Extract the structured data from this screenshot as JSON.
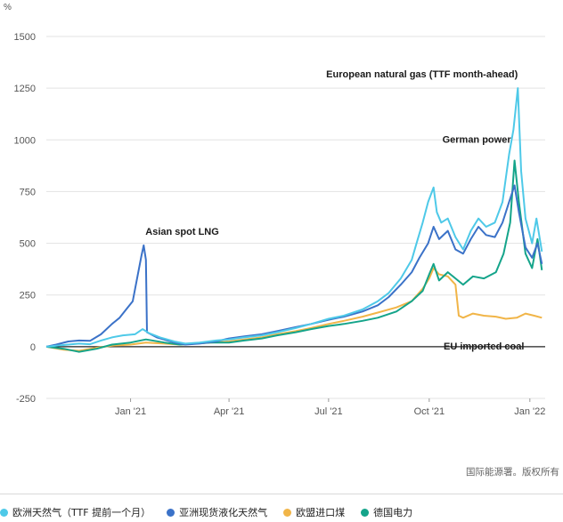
{
  "chart_data": {
    "type": "line",
    "unit": "%",
    "ylim": [
      -250,
      1500
    ],
    "yticks": [
      -250,
      0,
      250,
      500,
      750,
      1000,
      1250,
      1500
    ],
    "xlim": [
      "2020-10-16",
      "2022-01-15"
    ],
    "xticks": [
      {
        "date": "2021-01-01",
        "label": "Jan '21"
      },
      {
        "date": "2021-04-01",
        "label": "Apr '21"
      },
      {
        "date": "2021-07-01",
        "label": "Jul '21"
      },
      {
        "date": "2021-10-01",
        "label": "Oct '21"
      },
      {
        "date": "2022-01-01",
        "label": "Jan '22"
      }
    ],
    "grid": true,
    "legend_position": "bottom",
    "annotations": [
      {
        "series": "ttf",
        "text": "European natural gas (TTF month-ahead)"
      },
      {
        "series": "power",
        "text": "German power"
      },
      {
        "series": "lng",
        "text": "Asian spot LNG"
      },
      {
        "series": "coal",
        "text": "EU imported coal"
      }
    ],
    "series": [
      {
        "id": "ttf",
        "name": "欧洲天然气（TTF 提前一个月）",
        "color": "#4ec9e8",
        "points": [
          [
            "2020-10-16",
            0
          ],
          [
            "2020-10-25",
            5
          ],
          [
            "2020-11-05",
            10
          ],
          [
            "2020-11-15",
            15
          ],
          [
            "2020-11-25",
            12
          ],
          [
            "2020-12-05",
            30
          ],
          [
            "2020-12-15",
            45
          ],
          [
            "2020-12-25",
            55
          ],
          [
            "2021-01-05",
            60
          ],
          [
            "2021-01-12",
            85
          ],
          [
            "2021-01-18",
            65
          ],
          [
            "2021-01-28",
            45
          ],
          [
            "2021-02-10",
            25
          ],
          [
            "2021-02-20",
            15
          ],
          [
            "2021-03-05",
            20
          ],
          [
            "2021-03-20",
            30
          ],
          [
            "2021-04-01",
            35
          ],
          [
            "2021-04-15",
            45
          ],
          [
            "2021-05-01",
            55
          ],
          [
            "2021-05-15",
            70
          ],
          [
            "2021-06-01",
            90
          ],
          [
            "2021-06-15",
            110
          ],
          [
            "2021-07-01",
            135
          ],
          [
            "2021-07-15",
            150
          ],
          [
            "2021-08-01",
            180
          ],
          [
            "2021-08-15",
            220
          ],
          [
            "2021-08-25",
            260
          ],
          [
            "2021-09-05",
            330
          ],
          [
            "2021-09-15",
            420
          ],
          [
            "2021-09-20",
            510
          ],
          [
            "2021-09-25",
            600
          ],
          [
            "2021-09-30",
            700
          ],
          [
            "2021-10-05",
            770
          ],
          [
            "2021-10-08",
            650
          ],
          [
            "2021-10-12",
            600
          ],
          [
            "2021-10-18",
            620
          ],
          [
            "2021-10-25",
            530
          ],
          [
            "2021-11-01",
            470
          ],
          [
            "2021-11-08",
            560
          ],
          [
            "2021-11-15",
            620
          ],
          [
            "2021-11-22",
            580
          ],
          [
            "2021-11-30",
            600
          ],
          [
            "2021-12-07",
            700
          ],
          [
            "2021-12-13",
            930
          ],
          [
            "2021-12-17",
            1050
          ],
          [
            "2021-12-21",
            1250
          ],
          [
            "2021-12-24",
            850
          ],
          [
            "2021-12-28",
            620
          ],
          [
            "2022-01-03",
            500
          ],
          [
            "2022-01-07",
            620
          ],
          [
            "2022-01-12",
            460
          ]
        ]
      },
      {
        "id": "lng",
        "name": "亚洲现货液化天然气",
        "color": "#3b72c8",
        "points": [
          [
            "2020-10-16",
            0
          ],
          [
            "2020-10-25",
            10
          ],
          [
            "2020-11-05",
            25
          ],
          [
            "2020-11-15",
            30
          ],
          [
            "2020-11-25",
            28
          ],
          [
            "2020-12-05",
            60
          ],
          [
            "2020-12-15",
            110
          ],
          [
            "2020-12-22",
            140
          ],
          [
            "2020-12-28",
            180
          ],
          [
            "2021-01-03",
            220
          ],
          [
            "2021-01-07",
            330
          ],
          [
            "2021-01-11",
            440
          ],
          [
            "2021-01-13",
            490
          ],
          [
            "2021-01-15",
            420
          ],
          [
            "2021-01-16",
            70
          ],
          [
            "2021-01-25",
            45
          ],
          [
            "2021-02-10",
            20
          ],
          [
            "2021-02-20",
            10
          ],
          [
            "2021-03-05",
            15
          ],
          [
            "2021-03-20",
            25
          ],
          [
            "2021-04-01",
            40
          ],
          [
            "2021-04-15",
            50
          ],
          [
            "2021-05-01",
            60
          ],
          [
            "2021-05-15",
            75
          ],
          [
            "2021-06-01",
            95
          ],
          [
            "2021-06-15",
            110
          ],
          [
            "2021-07-01",
            130
          ],
          [
            "2021-07-15",
            145
          ],
          [
            "2021-08-01",
            170
          ],
          [
            "2021-08-15",
            200
          ],
          [
            "2021-08-25",
            240
          ],
          [
            "2021-09-05",
            300
          ],
          [
            "2021-09-15",
            360
          ],
          [
            "2021-09-22",
            430
          ],
          [
            "2021-09-30",
            500
          ],
          [
            "2021-10-05",
            580
          ],
          [
            "2021-10-10",
            520
          ],
          [
            "2021-10-18",
            560
          ],
          [
            "2021-10-25",
            470
          ],
          [
            "2021-11-01",
            450
          ],
          [
            "2021-11-08",
            520
          ],
          [
            "2021-11-15",
            580
          ],
          [
            "2021-11-22",
            540
          ],
          [
            "2021-11-30",
            530
          ],
          [
            "2021-12-07",
            600
          ],
          [
            "2021-12-13",
            700
          ],
          [
            "2021-12-18",
            780
          ],
          [
            "2021-12-22",
            650
          ],
          [
            "2021-12-28",
            480
          ],
          [
            "2022-01-03",
            430
          ],
          [
            "2022-01-08",
            500
          ],
          [
            "2022-01-12",
            400
          ]
        ]
      },
      {
        "id": "coal",
        "name": "欧盟进口煤",
        "color": "#f1b548",
        "points": [
          [
            "2020-10-16",
            0
          ],
          [
            "2020-11-01",
            -15
          ],
          [
            "2020-11-15",
            -20
          ],
          [
            "2020-12-01",
            -5
          ],
          [
            "2020-12-15",
            5
          ],
          [
            "2021-01-01",
            10
          ],
          [
            "2021-01-15",
            20
          ],
          [
            "2021-02-01",
            15
          ],
          [
            "2021-02-15",
            10
          ],
          [
            "2021-03-01",
            15
          ],
          [
            "2021-03-15",
            20
          ],
          [
            "2021-04-01",
            25
          ],
          [
            "2021-04-15",
            35
          ],
          [
            "2021-05-01",
            45
          ],
          [
            "2021-05-15",
            60
          ],
          [
            "2021-06-01",
            75
          ],
          [
            "2021-06-15",
            90
          ],
          [
            "2021-07-01",
            110
          ],
          [
            "2021-07-15",
            125
          ],
          [
            "2021-08-01",
            145
          ],
          [
            "2021-08-15",
            165
          ],
          [
            "2021-09-01",
            190
          ],
          [
            "2021-09-15",
            220
          ],
          [
            "2021-09-25",
            280
          ],
          [
            "2021-10-01",
            330
          ],
          [
            "2021-10-05",
            380
          ],
          [
            "2021-10-10",
            350
          ],
          [
            "2021-10-18",
            340
          ],
          [
            "2021-10-25",
            300
          ],
          [
            "2021-10-28",
            150
          ],
          [
            "2021-11-01",
            140
          ],
          [
            "2021-11-10",
            160
          ],
          [
            "2021-11-20",
            150
          ],
          [
            "2021-12-01",
            145
          ],
          [
            "2021-12-10",
            135
          ],
          [
            "2021-12-20",
            140
          ],
          [
            "2021-12-28",
            160
          ],
          [
            "2022-01-05",
            150
          ],
          [
            "2022-01-12",
            140
          ]
        ]
      },
      {
        "id": "power",
        "name": "德国电力",
        "color": "#14a48a",
        "points": [
          [
            "2020-10-16",
            0
          ],
          [
            "2020-11-01",
            -10
          ],
          [
            "2020-11-15",
            -25
          ],
          [
            "2020-12-01",
            -10
          ],
          [
            "2020-12-15",
            10
          ],
          [
            "2021-01-01",
            20
          ],
          [
            "2021-01-15",
            35
          ],
          [
            "2021-02-01",
            20
          ],
          [
            "2021-02-15",
            10
          ],
          [
            "2021-03-01",
            15
          ],
          [
            "2021-03-15",
            20
          ],
          [
            "2021-04-01",
            20
          ],
          [
            "2021-04-15",
            30
          ],
          [
            "2021-05-01",
            40
          ],
          [
            "2021-05-15",
            55
          ],
          [
            "2021-06-01",
            70
          ],
          [
            "2021-06-15",
            85
          ],
          [
            "2021-07-01",
            100
          ],
          [
            "2021-07-15",
            110
          ],
          [
            "2021-08-01",
            125
          ],
          [
            "2021-08-15",
            140
          ],
          [
            "2021-09-01",
            170
          ],
          [
            "2021-09-15",
            220
          ],
          [
            "2021-09-25",
            270
          ],
          [
            "2021-10-01",
            350
          ],
          [
            "2021-10-05",
            400
          ],
          [
            "2021-10-10",
            320
          ],
          [
            "2021-10-18",
            360
          ],
          [
            "2021-10-25",
            330
          ],
          [
            "2021-11-01",
            300
          ],
          [
            "2021-11-10",
            340
          ],
          [
            "2021-11-20",
            330
          ],
          [
            "2021-12-01",
            360
          ],
          [
            "2021-12-08",
            450
          ],
          [
            "2021-12-14",
            600
          ],
          [
            "2021-12-18",
            900
          ],
          [
            "2021-12-22",
            700
          ],
          [
            "2021-12-28",
            450
          ],
          [
            "2022-01-03",
            380
          ],
          [
            "2022-01-08",
            520
          ],
          [
            "2022-01-12",
            370
          ]
        ]
      }
    ]
  },
  "credit": "国际能源署。版权所有"
}
